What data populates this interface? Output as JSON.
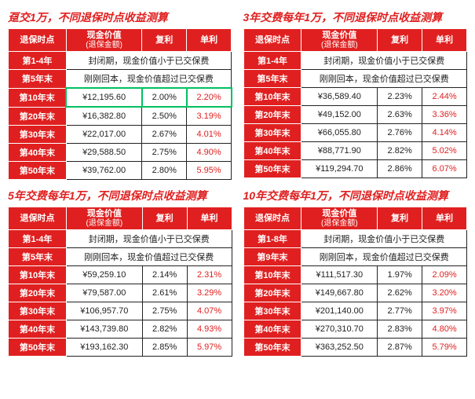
{
  "panels": [
    {
      "title": "趸交1万，不同退保时点收益测算",
      "header": {
        "col1": "退保时点",
        "col2": "现金价值",
        "col2sub": "(退保金额)",
        "col3": "复利",
        "col4": "单利"
      },
      "notes": [
        {
          "label": "第1-4年",
          "text": "封闭期，现金价值小于已交保费"
        },
        {
          "label": "第5年末",
          "text": "刚刚回本，现金价值超过已交保费"
        }
      ],
      "rows": [
        {
          "label": "第10年末",
          "cash": "¥12,195.60",
          "fuli": "2.00%",
          "danli": "2.20%",
          "highlight": true
        },
        {
          "label": "第20年末",
          "cash": "¥16,382.80",
          "fuli": "2.50%",
          "danli": "3.19%"
        },
        {
          "label": "第30年末",
          "cash": "¥22,017.00",
          "fuli": "2.67%",
          "danli": "4.01%"
        },
        {
          "label": "第40年末",
          "cash": "¥29,588.50",
          "fuli": "2.75%",
          "danli": "4.90%"
        },
        {
          "label": "第50年末",
          "cash": "¥39,762.00",
          "fuli": "2.80%",
          "danli": "5.95%"
        }
      ]
    },
    {
      "title": "3年交费每年1万，不同退保时点收益测算",
      "header": {
        "col1": "退保时点",
        "col2": "现金价值",
        "col2sub": "(退保金额)",
        "col3": "复利",
        "col4": "单利"
      },
      "notes": [
        {
          "label": "第1-4年",
          "text": "封闭期，现金价值小于已交保费"
        },
        {
          "label": "第5年末",
          "text": "刚刚回本，现金价值超过已交保费"
        }
      ],
      "rows": [
        {
          "label": "第10年末",
          "cash": "¥36,589.40",
          "fuli": "2.23%",
          "danli": "2.44%"
        },
        {
          "label": "第20年末",
          "cash": "¥49,152.00",
          "fuli": "2.63%",
          "danli": "3.36%"
        },
        {
          "label": "第30年末",
          "cash": "¥66,055.80",
          "fuli": "2.76%",
          "danli": "4.14%"
        },
        {
          "label": "第40年末",
          "cash": "¥88,771.90",
          "fuli": "2.82%",
          "danli": "5.02%"
        },
        {
          "label": "第50年末",
          "cash": "¥119,294.70",
          "fuli": "2.86%",
          "danli": "6.07%"
        }
      ]
    },
    {
      "title": "5年交费每年1万，不同退保时点收益测算",
      "header": {
        "col1": "退保时点",
        "col2": "现金价值",
        "col2sub": "(退保金额)",
        "col3": "复利",
        "col4": "单利"
      },
      "notes": [
        {
          "label": "第1-4年",
          "text": "封闭期，现金价值小于已交保费"
        },
        {
          "label": "第5年末",
          "text": "刚刚回本，现金价值超过已交保费"
        }
      ],
      "rows": [
        {
          "label": "第10年末",
          "cash": "¥59,259.10",
          "fuli": "2.14%",
          "danli": "2.31%"
        },
        {
          "label": "第20年末",
          "cash": "¥79,587.00",
          "fuli": "2.61%",
          "danli": "3.29%"
        },
        {
          "label": "第30年末",
          "cash": "¥106,957.70",
          "fuli": "2.75%",
          "danli": "4.07%"
        },
        {
          "label": "第40年末",
          "cash": "¥143,739.80",
          "fuli": "2.82%",
          "danli": "4.93%"
        },
        {
          "label": "第50年末",
          "cash": "¥193,162.30",
          "fuli": "2.85%",
          "danli": "5.97%"
        }
      ]
    },
    {
      "title": "10年交费每年1万，不同退保时点收益测算",
      "header": {
        "col1": "退保时点",
        "col2": "现金价值",
        "col2sub": "(退保金额)",
        "col3": "复利",
        "col4": "单利"
      },
      "notes": [
        {
          "label": "第1-8年",
          "text": "封闭期，现金价值小于已交保费"
        },
        {
          "label": "第9年末",
          "text": "刚刚回本，现金价值超过已交保费"
        }
      ],
      "rows": [
        {
          "label": "第10年末",
          "cash": "¥111,517.30",
          "fuli": "1.97%",
          "danli": "2.09%"
        },
        {
          "label": "第20年末",
          "cash": "¥149,667.80",
          "fuli": "2.62%",
          "danli": "3.20%"
        },
        {
          "label": "第30年末",
          "cash": "¥201,140.00",
          "fuli": "2.77%",
          "danli": "3.97%"
        },
        {
          "label": "第40年末",
          "cash": "¥270,310.70",
          "fuli": "2.83%",
          "danli": "4.80%"
        },
        {
          "label": "第50年末",
          "cash": "¥363,252.50",
          "fuli": "2.87%",
          "danli": "5.79%"
        }
      ]
    }
  ]
}
